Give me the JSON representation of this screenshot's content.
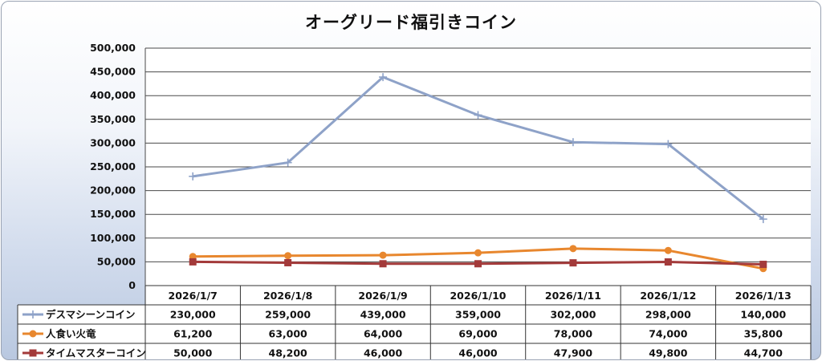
{
  "chart_data": {
    "type": "line",
    "title": "オーグリード福引きコイン",
    "categories": [
      "2026/1/7",
      "2026/1/8",
      "2026/1/9",
      "2026/1/10",
      "2026/1/11",
      "2026/1/12",
      "2026/1/13"
    ],
    "ylim": [
      0,
      500000
    ],
    "yticks": [
      "0",
      "50,000",
      "100,000",
      "150,000",
      "200,000",
      "250,000",
      "300,000",
      "350,000",
      "400,000",
      "450,000",
      "500,000"
    ],
    "grid": true,
    "legend": "data-table",
    "series": [
      {
        "name": "デスマシーンコイン",
        "color": "#8ea2c8",
        "marker": "plus",
        "values": [
          230000,
          259000,
          439000,
          359000,
          302000,
          298000,
          140000
        ],
        "labels": [
          "230,000",
          "259,000",
          "439,000",
          "359,000",
          "302,000",
          "298,000",
          "140,000"
        ]
      },
      {
        "name": "人食い火竜",
        "color": "#e8872e",
        "marker": "circle",
        "values": [
          61200,
          63000,
          64000,
          69000,
          78000,
          74000,
          35800
        ],
        "labels": [
          "61,200",
          "63,000",
          "64,000",
          "69,000",
          "78,000",
          "74,000",
          "35,800"
        ]
      },
      {
        "name": "タイムマスターコイン",
        "color": "#a33a3a",
        "marker": "square",
        "values": [
          50000,
          48200,
          46000,
          46000,
          47900,
          49800,
          44700
        ],
        "labels": [
          "50,000",
          "48,200",
          "46,000",
          "46,000",
          "47,900",
          "49,800",
          "44,700"
        ]
      }
    ]
  }
}
